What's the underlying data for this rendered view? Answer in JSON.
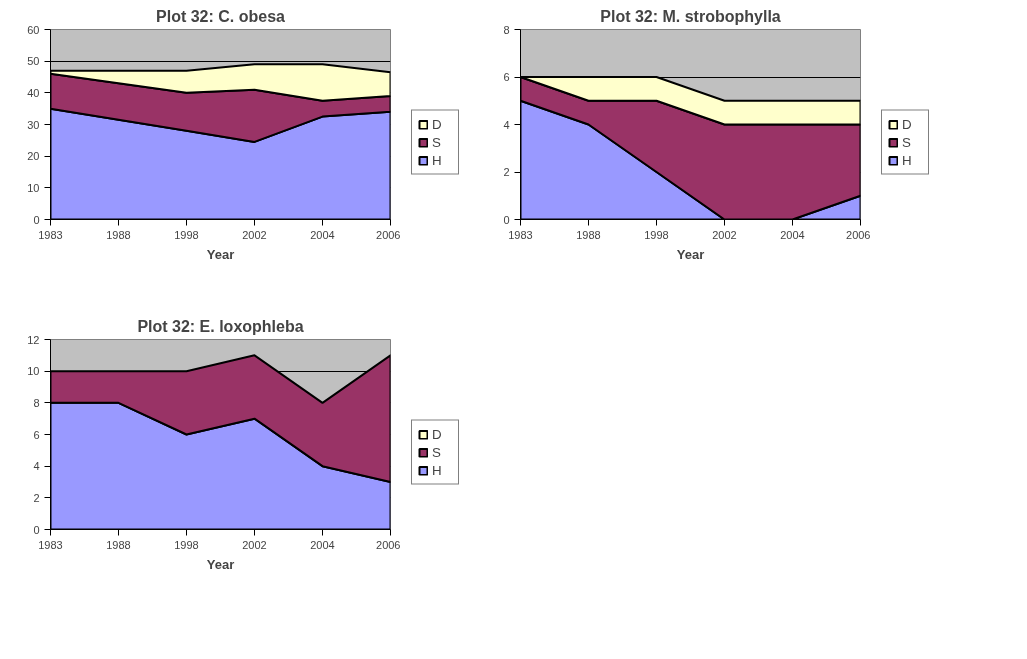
{
  "chart_data": [
    {
      "type": "area",
      "stacked": true,
      "title": "Plot 32: C. obesa",
      "xlabel": "Year",
      "categories": [
        "1983",
        "1988",
        "1998",
        "2002",
        "2004",
        "2006"
      ],
      "ylim": [
        0,
        60
      ],
      "yticks": [
        0,
        10,
        20,
        30,
        40,
        50,
        60
      ],
      "grid": "y",
      "legend": "right",
      "series": [
        {
          "name": "H",
          "color": "#9999ff",
          "values": [
            35,
            31.5,
            28,
            24.5,
            32.5,
            34
          ]
        },
        {
          "name": "S",
          "color": "#993366",
          "values": [
            11,
            11.5,
            12,
            16.5,
            5,
            5
          ]
        },
        {
          "name": "D",
          "color": "#ffffcc",
          "values": [
            1,
            4,
            7,
            8,
            11.5,
            7.5
          ]
        }
      ]
    },
    {
      "type": "area",
      "stacked": true,
      "title": "Plot 32: M. strobophylla",
      "xlabel": "Year",
      "categories": [
        "1983",
        "1988",
        "1998",
        "2002",
        "2004",
        "2006"
      ],
      "ylim": [
        0,
        8
      ],
      "yticks": [
        0,
        2,
        4,
        6,
        8
      ],
      "grid": "y",
      "legend": "right",
      "series": [
        {
          "name": "H",
          "color": "#9999ff",
          "values": [
            5,
            4,
            2,
            0,
            0,
            1
          ]
        },
        {
          "name": "S",
          "color": "#993366",
          "values": [
            1,
            1,
            3,
            4,
            4,
            3
          ]
        },
        {
          "name": "D",
          "color": "#ffffcc",
          "values": [
            0,
            1,
            1,
            1,
            1,
            1
          ]
        }
      ]
    },
    {
      "type": "area",
      "stacked": true,
      "title": "Plot 32: E. loxophleba",
      "xlabel": "Year",
      "categories": [
        "1983",
        "1988",
        "1998",
        "2002",
        "2004",
        "2006"
      ],
      "ylim": [
        0,
        12
      ],
      "yticks": [
        0,
        2,
        4,
        6,
        8,
        10,
        12
      ],
      "grid": "y",
      "legend": "right",
      "series": [
        {
          "name": "H",
          "color": "#9999ff",
          "values": [
            8,
            8,
            6,
            7,
            4,
            3
          ]
        },
        {
          "name": "S",
          "color": "#993366",
          "values": [
            2,
            2,
            4,
            4,
            4,
            8
          ]
        },
        {
          "name": "D",
          "color": "#ffffcc",
          "values": [
            null,
            null,
            null,
            null,
            null,
            null
          ]
        }
      ]
    }
  ]
}
